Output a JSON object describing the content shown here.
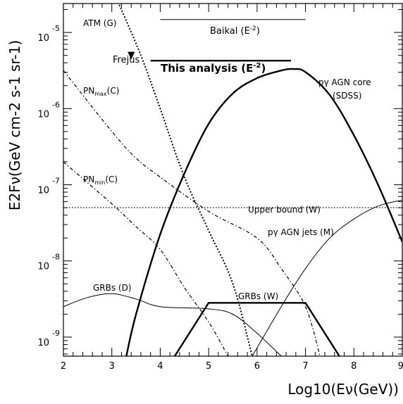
{
  "chart_data": {
    "type": "line",
    "xlabel": "Log10(Eν(GeV))",
    "ylabel": "E2Fν(GeV cm-2 s-1 sr-1)",
    "xlim": [
      2,
      9
    ],
    "ylim_log10": [
      -9.25,
      -4.62
    ],
    "y_scale": "log",
    "x_ticks": [
      "2",
      "3",
      "4",
      "5",
      "6",
      "7",
      "8",
      "9"
    ],
    "y_ticks": [
      {
        "value": -9,
        "base": "10",
        "exp": "-9"
      },
      {
        "value": -8,
        "base": "10",
        "exp": "-8"
      },
      {
        "value": -7,
        "base": "10",
        "exp": "-7"
      },
      {
        "value": -6,
        "base": "10",
        "exp": "-6"
      },
      {
        "value": -5,
        "base": "10",
        "exp": "-5"
      }
    ],
    "series": [
      {
        "key": "atm",
        "style": "dotted-thick",
        "points": [
          [
            3.13,
            -4.6
          ],
          [
            3.6,
            -5.3
          ],
          [
            4.0,
            -6.0
          ],
          [
            4.5,
            -6.9
          ],
          [
            5.0,
            -7.6
          ],
          [
            5.5,
            -8.3
          ],
          [
            5.9,
            -9.25
          ]
        ]
      },
      {
        "key": "pnmax",
        "style": "dashdot",
        "points": [
          [
            2.0,
            -5.5
          ],
          [
            3.0,
            -6.3
          ],
          [
            3.5,
            -6.65
          ],
          [
            4.0,
            -6.9
          ],
          [
            5.0,
            -7.35
          ],
          [
            6.0,
            -7.7
          ],
          [
            6.5,
            -8.1
          ],
          [
            7.0,
            -8.6
          ],
          [
            7.3,
            -9.25
          ]
        ]
      },
      {
        "key": "pnmin",
        "style": "dashdot",
        "points": [
          [
            2.0,
            -6.7
          ],
          [
            3.0,
            -7.25
          ],
          [
            3.5,
            -7.55
          ],
          [
            4.0,
            -7.85
          ],
          [
            4.5,
            -8.35
          ],
          [
            5.0,
            -8.8
          ],
          [
            5.4,
            -9.25
          ]
        ]
      },
      {
        "key": "upper",
        "style": "dotted",
        "points": [
          [
            2.0,
            -7.3
          ],
          [
            9.0,
            -7.3
          ]
        ]
      },
      {
        "key": "agncore",
        "style": "solid-thick",
        "points": [
          [
            3.3,
            -9.25
          ],
          [
            3.5,
            -8.7
          ],
          [
            4.0,
            -7.65
          ],
          [
            4.5,
            -6.85
          ],
          [
            5.0,
            -6.2
          ],
          [
            5.5,
            -5.8
          ],
          [
            6.0,
            -5.6
          ],
          [
            6.5,
            -5.5
          ],
          [
            6.75,
            -5.48
          ],
          [
            7.0,
            -5.52
          ],
          [
            7.5,
            -5.82
          ],
          [
            8.0,
            -6.35
          ],
          [
            8.5,
            -7.0
          ],
          [
            9.0,
            -7.75
          ]
        ]
      },
      {
        "key": "agnjets",
        "style": "solid",
        "points": [
          [
            5.9,
            -9.25
          ],
          [
            6.5,
            -8.6
          ],
          [
            7.0,
            -8.1
          ],
          [
            7.5,
            -7.7
          ],
          [
            8.0,
            -7.45
          ],
          [
            8.5,
            -7.28
          ],
          [
            9.0,
            -7.2
          ]
        ]
      },
      {
        "key": "grbd",
        "style": "solid",
        "points": [
          [
            2.0,
            -8.6
          ],
          [
            2.5,
            -8.48
          ],
          [
            3.0,
            -8.43
          ],
          [
            3.5,
            -8.5
          ],
          [
            4.0,
            -8.6
          ],
          [
            5.0,
            -8.63
          ],
          [
            5.5,
            -8.7
          ],
          [
            6.0,
            -8.95
          ],
          [
            6.5,
            -9.25
          ]
        ]
      },
      {
        "key": "grbw",
        "style": "solid-thick",
        "points": [
          [
            4.3,
            -9.25
          ],
          [
            5.0,
            -8.55
          ],
          [
            7.0,
            -8.55
          ],
          [
            7.7,
            -9.25
          ]
        ]
      },
      {
        "key": "baikal",
        "style": "solid",
        "points": [
          [
            4.0,
            -4.83
          ],
          [
            7.0,
            -4.83
          ]
        ]
      },
      {
        "key": "thisanalysis",
        "style": "solid-thick",
        "points": [
          [
            3.8,
            -5.37
          ],
          [
            6.7,
            -5.37
          ]
        ]
      }
    ],
    "markers": [
      {
        "key": "frejus",
        "shape": "triangle-down",
        "x": 3.4,
        "y": -5.3
      }
    ],
    "annotations": {
      "atm": "ATM (G)",
      "frejus": "Frejus",
      "baikal": "Baikal (E",
      "baikal_exp": "-2",
      "baikal_close": ")",
      "thisanalysis": "This analysis (E",
      "thisanalysis_exp": "-2",
      "thisanalysis_close": ")",
      "pnmax": "PN",
      "pnmax_sub": "max",
      "pnmax_tail": "(C)",
      "pnmin": "PN",
      "pnmin_sub": "min",
      "pnmin_tail": "(C)",
      "agncore_1": "pγ AGN core",
      "agncore_2": "(SDSS)",
      "upper": "Upper bound (W)",
      "agnjets": "pγ AGN jets (M)",
      "grbd": "GRBs (D)",
      "grbw": "GRBs (W)"
    },
    "grid": false,
    "legend": "none"
  }
}
